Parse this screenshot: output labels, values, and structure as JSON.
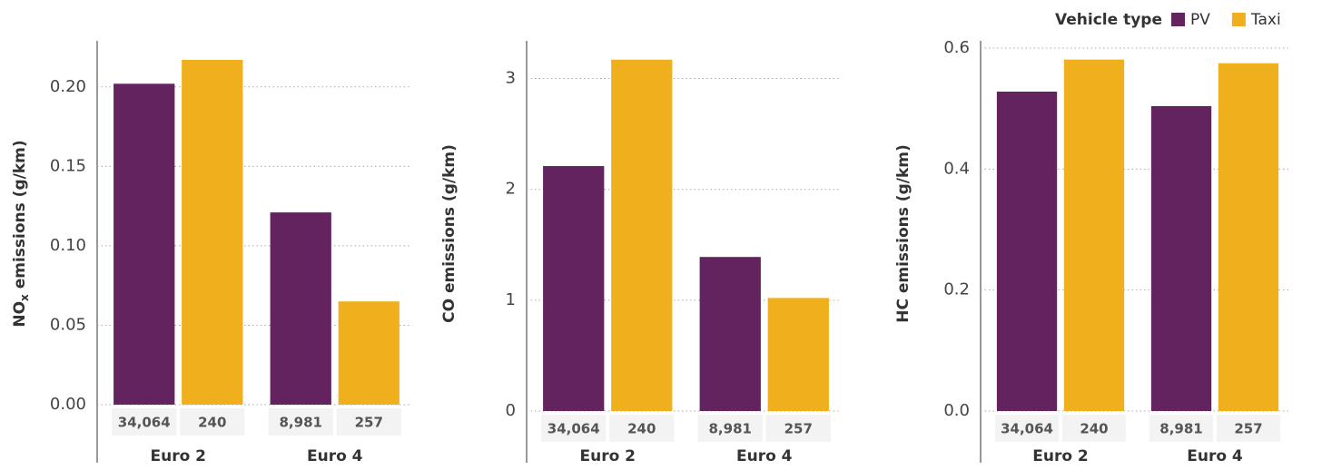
{
  "legend": {
    "title": "Vehicle type"
  },
  "chart_data": [
    {
      "type": "bar",
      "y_label": [
        {
          "text": "NO"
        },
        {
          "text": "x",
          "sub": true
        },
        {
          "text": " emissions (g/km)"
        }
      ],
      "categories": [
        "Euro 2",
        "Euro 4"
      ],
      "series": [
        {
          "name": "PV",
          "color": "#62235f",
          "values": [
            0.202,
            0.121
          ],
          "n_labels": [
            "34,064",
            "8,981"
          ]
        },
        {
          "name": "Taxi",
          "color": "#f0b01e",
          "values": [
            0.217,
            0.065
          ],
          "n_labels": [
            "240",
            "257"
          ]
        }
      ],
      "ylim": [
        0,
        0.229
      ],
      "yticks": [
        {
          "value": 0,
          "label": "0.00"
        },
        0.05,
        {
          "value": 0.1,
          "label": "0.10"
        },
        0.15,
        {
          "value": 0.2,
          "label": "0.20"
        }
      ],
      "grid": true
    },
    {
      "type": "bar",
      "y_label": "CO emissions (g/km)",
      "categories": [
        "Euro 2",
        "Euro 4"
      ],
      "series": [
        {
          "name": "PV",
          "color": "#62235f",
          "values": [
            2.21,
            1.39
          ],
          "n_labels": [
            "34,064",
            "8,981"
          ]
        },
        {
          "name": "Taxi",
          "color": "#f0b01e",
          "values": [
            3.17,
            1.02
          ],
          "n_labels": [
            "240",
            "257"
          ]
        }
      ],
      "ylim": [
        0,
        3.34
      ],
      "yticks": [
        0,
        1,
        2,
        3
      ],
      "grid": true
    },
    {
      "type": "bar",
      "y_label": "HC emissions (g/km)",
      "categories": [
        "Euro 2",
        "Euro 4"
      ],
      "series": [
        {
          "name": "PV",
          "color": "#62235f",
          "values": [
            0.528,
            0.504
          ],
          "n_labels": [
            "34,064",
            "8,981"
          ]
        },
        {
          "name": "Taxi",
          "color": "#f0b01e",
          "values": [
            0.581,
            0.575
          ],
          "n_labels": [
            "240",
            "257"
          ]
        }
      ],
      "ylim": [
        0,
        0.612
      ],
      "yticks": [
        {
          "value": 0,
          "label": "0.0"
        },
        0.2,
        0.4,
        0.6
      ],
      "grid": true
    }
  ]
}
